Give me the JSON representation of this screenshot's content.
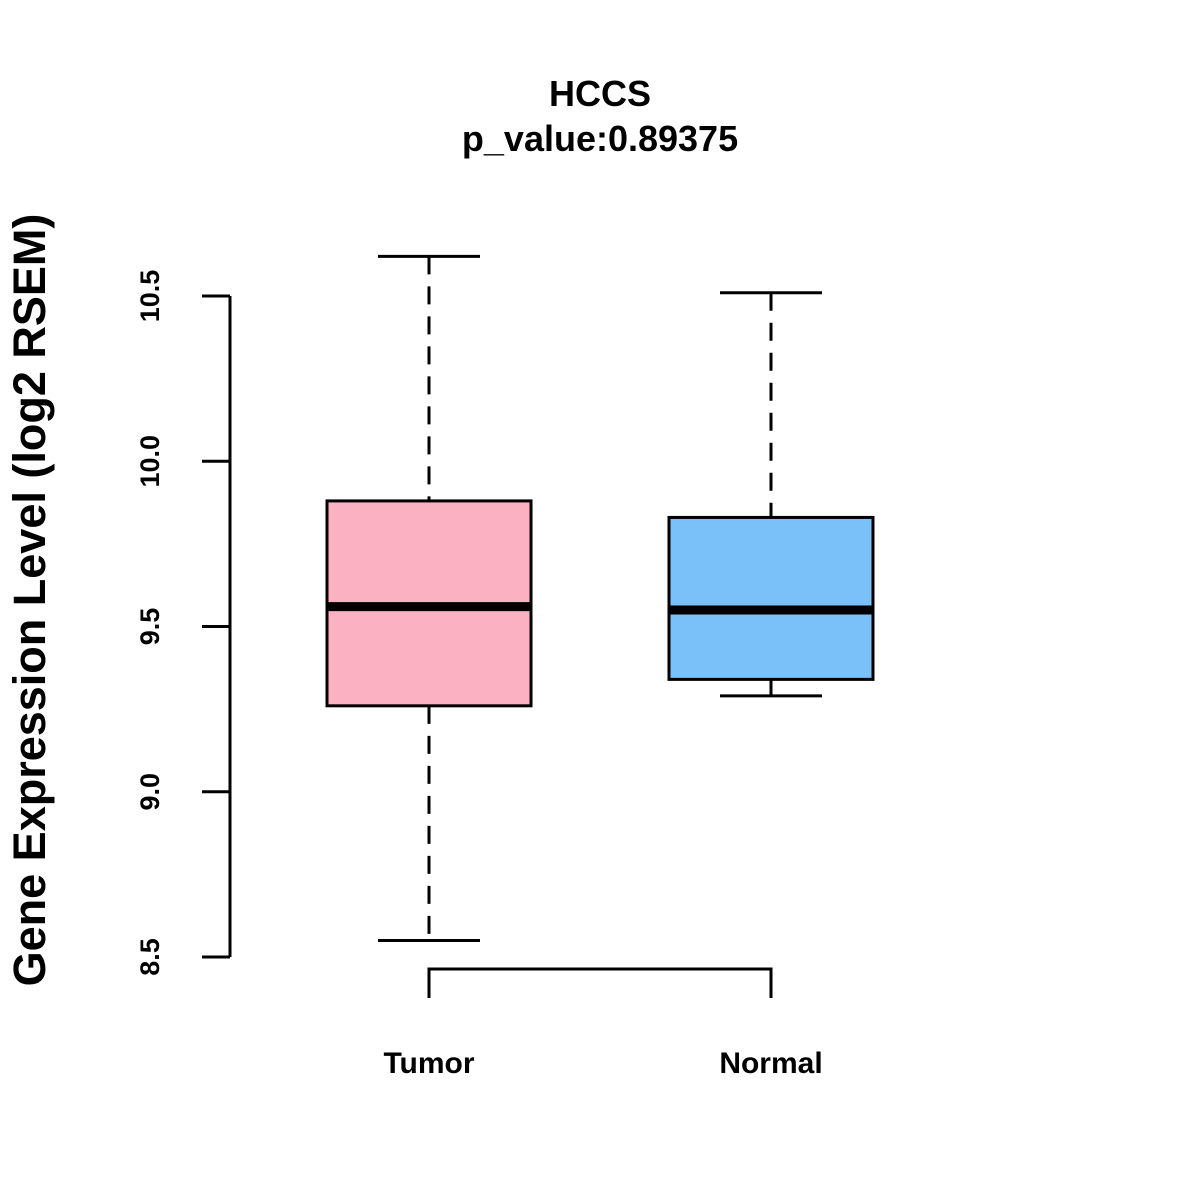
{
  "chart_data": {
    "type": "box",
    "title": "HCCS",
    "subtitle": "p_value:0.89375",
    "ylabel": "Gene Expression Level (log2 RSEM)",
    "xlabel": "",
    "ylim": [
      8.5,
      10.5
    ],
    "yticks": [
      "8.5",
      "9.0",
      "9.5",
      "10.0",
      "10.5"
    ],
    "grid": false,
    "legend": "none",
    "categories": [
      "Tumor",
      "Normal"
    ],
    "boxes": [
      {
        "category": "Tumor",
        "whisker_low": 8.55,
        "q1": 9.26,
        "median": 9.56,
        "q3": 9.88,
        "whisker_high": 10.62,
        "color": "#FBB1C2"
      },
      {
        "category": "Normal",
        "whisker_low": 9.29,
        "q1": 9.34,
        "median": 9.55,
        "q3": 9.83,
        "whisker_high": 10.51,
        "color": "#79C1F8"
      }
    ],
    "comparison_bracket": {
      "from": "Tumor",
      "to": "Normal"
    }
  }
}
